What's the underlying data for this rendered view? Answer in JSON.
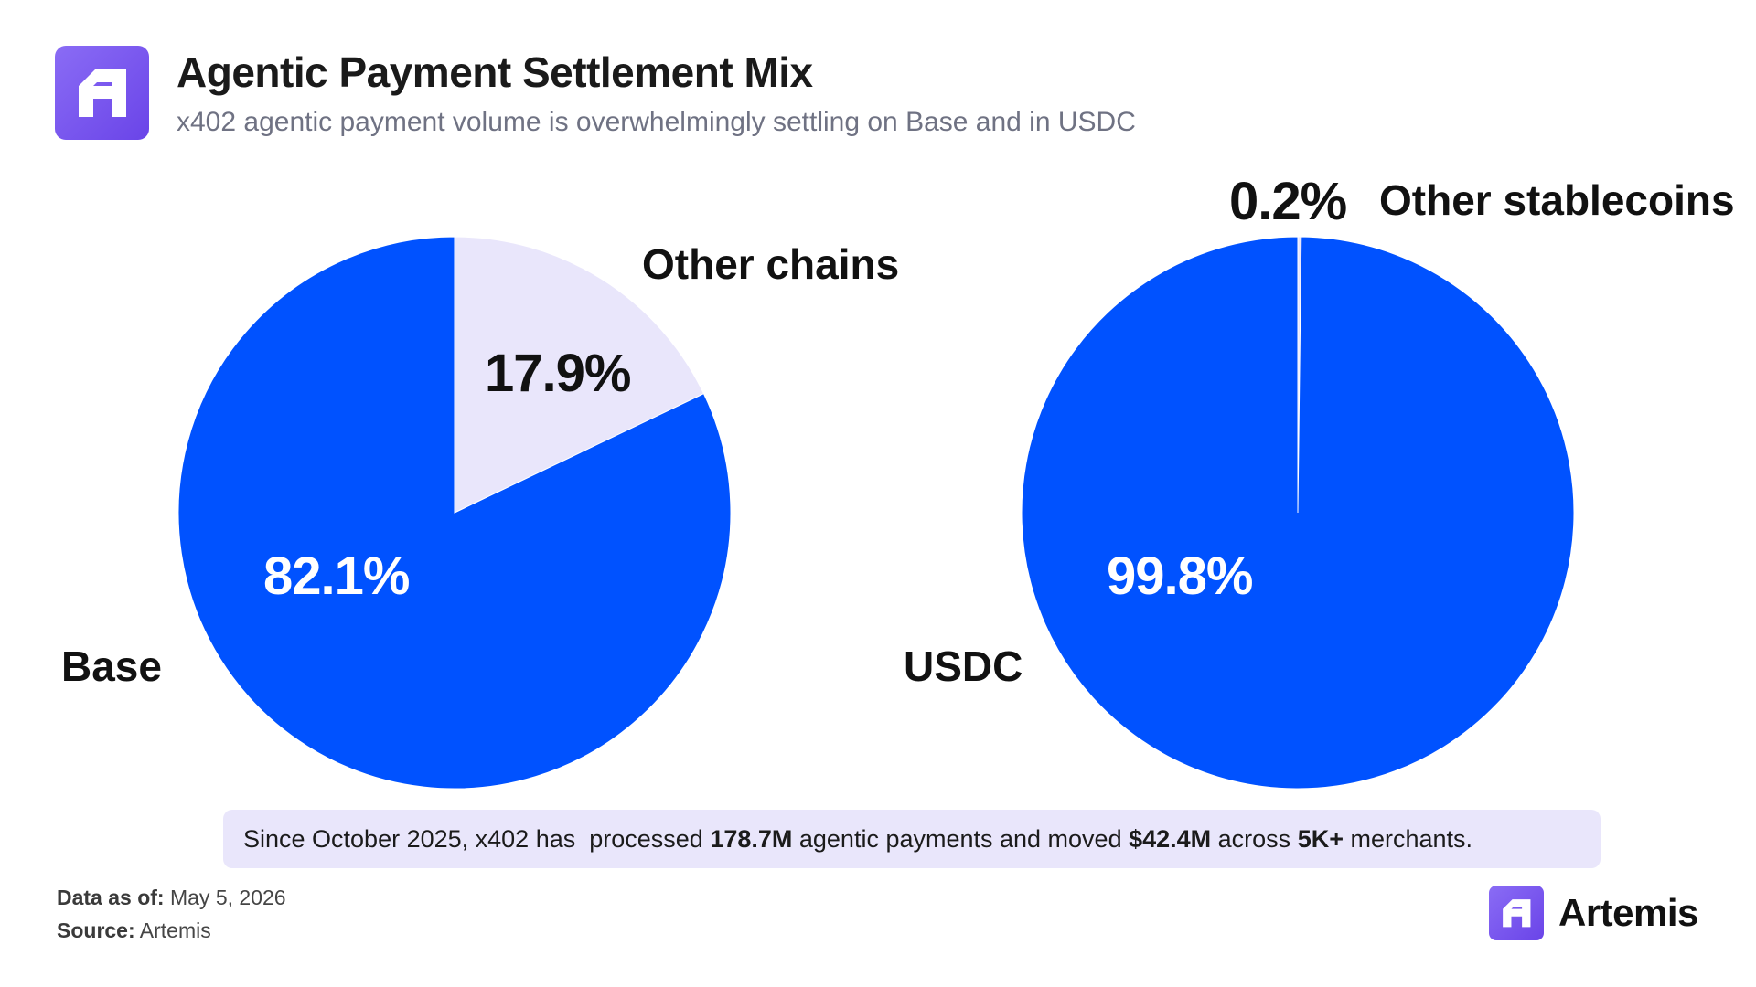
{
  "header": {
    "title": "Agentic Payment Settlement Mix",
    "subtitle": "x402 agentic payment volume is overwhelmingly settling on Base and in USDC",
    "logo_icon": "artemis-logo-icon"
  },
  "colors": {
    "primary": "#0052ff",
    "secondary": "#e9e6fb",
    "brand": "#7a58f0"
  },
  "chart_data": [
    {
      "type": "pie",
      "categories": [
        "Base",
        "Other chains"
      ],
      "values": [
        82.1,
        17.9
      ],
      "value_labels": [
        "82.1%",
        "17.9%"
      ],
      "colors": [
        "#0052ff",
        "#e9e6fb"
      ],
      "title": "",
      "legend": "none"
    },
    {
      "type": "pie",
      "categories": [
        "USDC",
        "Other stablecoins"
      ],
      "values": [
        99.8,
        0.2
      ],
      "value_labels": [
        "99.8%",
        "0.2%"
      ],
      "colors": [
        "#0052ff",
        "#e9e6fb"
      ],
      "title": "",
      "legend": "none"
    }
  ],
  "callout": {
    "prefix": "Since October 2025, x402 has  processed ",
    "payments": "178.7M",
    "mid1": " agentic payments and moved ",
    "moved": "$42.4M",
    "mid2": " across ",
    "merchants": "5K+",
    "suffix": " merchants."
  },
  "footer": {
    "asof_label": "Data as of:",
    "asof_value": "May 5, 2026",
    "source_label": "Source:",
    "source_value": "Artemis",
    "brand_name": "Artemis",
    "brand_icon": "artemis-logo-icon"
  }
}
